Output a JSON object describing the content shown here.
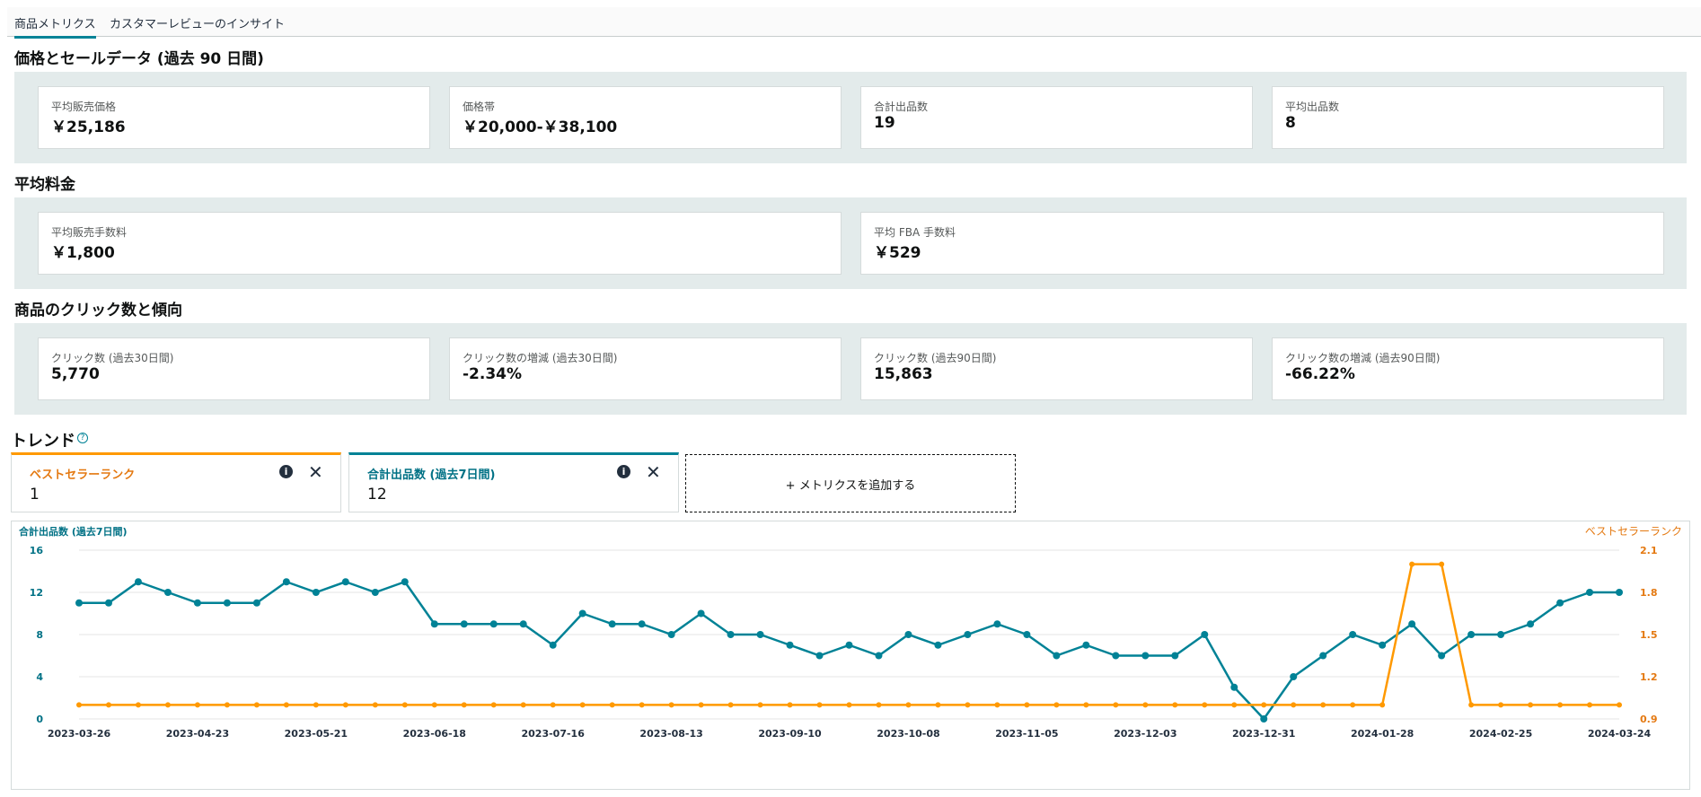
{
  "tabs": [
    {
      "label": "商品メトリクス",
      "active": true
    },
    {
      "label": "カスタマーレビューのインサイト",
      "active": false
    }
  ],
  "sections": {
    "price": {
      "title": "価格とセールデータ (過去 90 日間)",
      "cards": [
        {
          "label": "平均販売価格",
          "value": "￥25,186"
        },
        {
          "label": "価格帯",
          "value": "￥20,000-￥38,100"
        },
        {
          "label": "合計出品数",
          "value": "19"
        },
        {
          "label": "平均出品数",
          "value": "8"
        }
      ]
    },
    "fees": {
      "title": "平均料金",
      "cards": [
        {
          "label": "平均販売手数料",
          "value": "￥1,800"
        },
        {
          "label": "平均 FBA 手数料",
          "value": "￥529"
        }
      ]
    },
    "clicks": {
      "title": "商品のクリック数と傾向",
      "cards": [
        {
          "label": "クリック数 (過去30日間)",
          "value": "5,770"
        },
        {
          "label": "クリック数の増減 (過去30日間)",
          "value": "-2.34%"
        },
        {
          "label": "クリック数 (過去90日間)",
          "value": "15,863"
        },
        {
          "label": "クリック数の増減 (過去90日間)",
          "value": "-66.22%"
        }
      ]
    }
  },
  "trend": {
    "title": "トレンド",
    "help_icon": "question-circle-icon",
    "metrics": [
      {
        "label": "ベストセラーランク",
        "value": "1",
        "color": "#ff9900",
        "info_icon": "info-icon",
        "close_icon": "close-icon"
      },
      {
        "label": "合計出品数 (過去7日間)",
        "value": "12",
        "color": "#008296",
        "info_icon": "info-icon",
        "close_icon": "close-icon"
      }
    ],
    "add_metric_label": "+ メトリクスを追加する"
  },
  "chart_data": {
    "type": "line",
    "x_tick_labels": [
      "2023-03-26",
      "2023-04-23",
      "2023-05-21",
      "2023-06-18",
      "2023-07-16",
      "2023-08-13",
      "2023-09-10",
      "2023-10-08",
      "2023-11-05",
      "2023-12-03",
      "2023-12-31",
      "2024-01-28",
      "2024-02-25",
      "2024-03-24"
    ],
    "left_axis": {
      "label": "合計出品数 (過去7日間)",
      "ticks": [
        0,
        4,
        8,
        12,
        16
      ],
      "range": [
        0,
        16
      ]
    },
    "right_axis": {
      "label": "ベストセラーランク",
      "ticks": [
        "0.9",
        "1.2",
        "1.5",
        "1.8",
        "2.1"
      ],
      "range": [
        0.9,
        2.1
      ]
    },
    "series": [
      {
        "name": "合計出品数 (過去7日間)",
        "axis": "left",
        "color": "#008296",
        "values": [
          11,
          11,
          13,
          12,
          11,
          11,
          11,
          13,
          12,
          13,
          12,
          13,
          9,
          9,
          9,
          9,
          7,
          10,
          9,
          9,
          8,
          10,
          8,
          8,
          7,
          6,
          7,
          6,
          8,
          7,
          8,
          9,
          8,
          6,
          7,
          6,
          6,
          6,
          8,
          3,
          0,
          4,
          6,
          8,
          7,
          9,
          6,
          8,
          8,
          9,
          11,
          12,
          12
        ]
      },
      {
        "name": "ベストセラーランク",
        "axis": "right",
        "color": "#ff9900",
        "values": [
          1,
          1,
          1,
          1,
          1,
          1,
          1,
          1,
          1,
          1,
          1,
          1,
          1,
          1,
          1,
          1,
          1,
          1,
          1,
          1,
          1,
          1,
          1,
          1,
          1,
          1,
          1,
          1,
          1,
          1,
          1,
          1,
          1,
          1,
          1,
          1,
          1,
          1,
          1,
          1,
          1,
          1,
          1,
          1,
          1,
          2,
          2,
          1,
          1,
          1,
          1,
          1,
          1
        ]
      }
    ],
    "grid": true
  }
}
